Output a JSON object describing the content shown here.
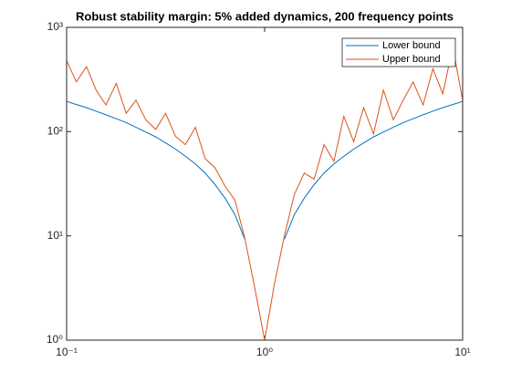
{
  "chart_data": {
    "type": "line",
    "title": "Robust stability margin: 5% added dynamics, 200 frequency points",
    "x": [
      0.1,
      0.112,
      0.126,
      0.141,
      0.158,
      0.178,
      0.2,
      0.224,
      0.251,
      0.282,
      0.316,
      0.355,
      0.398,
      0.447,
      0.501,
      0.562,
      0.631,
      0.708,
      0.794,
      0.891,
      1,
      1.122,
      1.259,
      1.413,
      1.585,
      1.778,
      1.995,
      2.239,
      2.512,
      2.818,
      3.162,
      3.548,
      3.981,
      4.467,
      5.012,
      5.623,
      6.31,
      7.079,
      7.943,
      8.913,
      10
    ],
    "series": [
      {
        "name": "Lower bound",
        "color": "#0072BD",
        "values": [
          195,
          182,
          170,
          157,
          145,
          133,
          122,
          110,
          99,
          89,
          78,
          68,
          58,
          49,
          40,
          31,
          23,
          16,
          9.3,
          null,
          null,
          null,
          9.3,
          16,
          23,
          31,
          40,
          49,
          58,
          68,
          78,
          89,
          99,
          110,
          122,
          133,
          145,
          157,
          170,
          182,
          195
        ]
      },
      {
        "name": "Upper bound",
        "color": "#D95319",
        "values": [
          480,
          300,
          420,
          250,
          180,
          290,
          150,
          200,
          130,
          105,
          150,
          90,
          75,
          110,
          55,
          45,
          30,
          22,
          9.5,
          3.2,
          1,
          3.5,
          10,
          25,
          40,
          35,
          75,
          52,
          140,
          80,
          170,
          95,
          250,
          130,
          200,
          300,
          180,
          400,
          230,
          650,
          200
        ]
      }
    ],
    "xlim": [
      0.1,
      10
    ],
    "ylim": [
      1,
      1000
    ],
    "xticks": [
      {
        "value": 0.1,
        "label": "10⁻¹"
      },
      {
        "value": 1,
        "label": "10⁰"
      },
      {
        "value": 10,
        "label": "10¹"
      }
    ],
    "yticks": [
      {
        "value": 1,
        "label": "10⁰"
      },
      {
        "value": 10,
        "label": "10¹"
      },
      {
        "value": 100,
        "label": "10²"
      },
      {
        "value": 1000,
        "label": "10³"
      }
    ],
    "xscale": "log",
    "yscale": "log",
    "grid": false,
    "legend": "northeast"
  }
}
